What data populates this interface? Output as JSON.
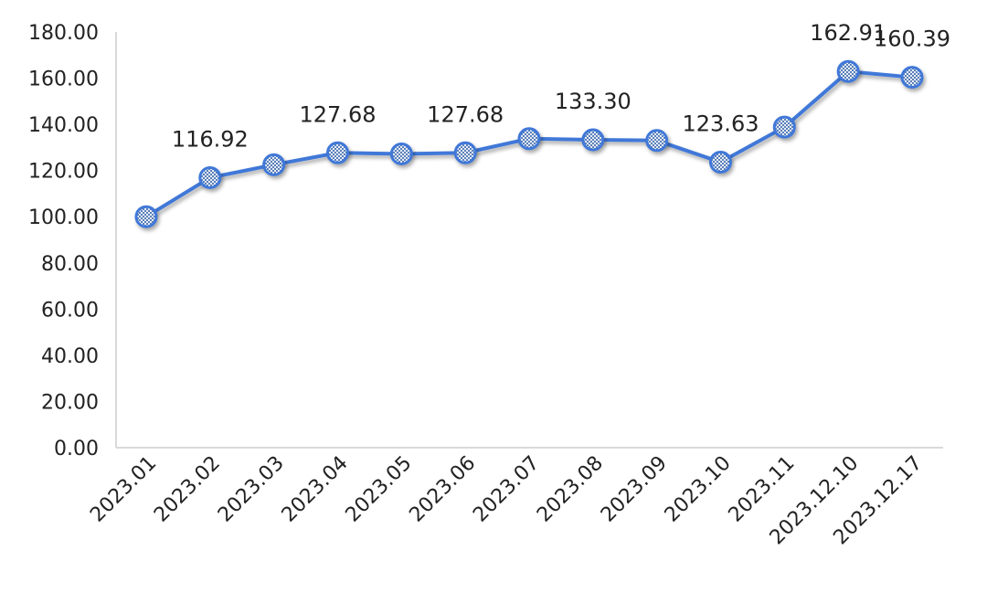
{
  "chart_data": {
    "type": "line",
    "title": "",
    "xlabel": "",
    "ylabel": "",
    "ylim": [
      0,
      180
    ],
    "y_ticks": [
      "0.00",
      "20.00",
      "40.00",
      "60.00",
      "80.00",
      "100.00",
      "120.00",
      "140.00",
      "160.00",
      "180.00"
    ],
    "y_tick_values": [
      0,
      20,
      40,
      60,
      80,
      100,
      120,
      140,
      160,
      180
    ],
    "grid": false,
    "legend": "none",
    "categories": [
      "2023.01",
      "2023.02",
      "2023.03",
      "2023.04",
      "2023.05",
      "2023.06",
      "2023.07",
      "2023.08",
      "2023.09",
      "2023.10",
      "2023.11",
      "2023.12.10",
      "2023.12.17"
    ],
    "series": [
      {
        "values": [
          100.0,
          116.92,
          122.5,
          127.68,
          127.2,
          127.68,
          133.8,
          133.3,
          133.0,
          123.63,
          138.8,
          162.91,
          160.39
        ],
        "labels": [
          "",
          "116.92",
          "",
          "127.68",
          "",
          "127.68",
          "",
          "133.30",
          "",
          "123.63",
          "",
          "162.91",
          "160.39"
        ]
      }
    ],
    "colors": {
      "line": "#3f78d8",
      "marker_fill": "#b8cbe8",
      "marker_stroke": "#3f78d8",
      "axis": "#d9d9d9"
    }
  }
}
